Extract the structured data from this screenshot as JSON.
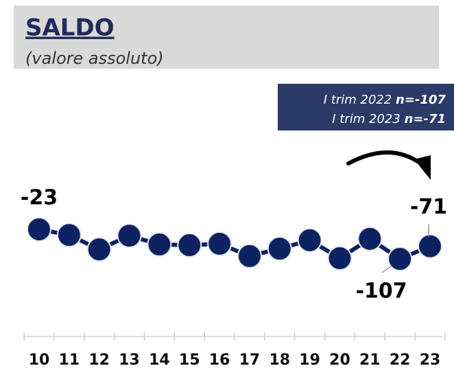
{
  "header": {
    "title": "SALDO",
    "subtitle": "(valore assoluto)"
  },
  "box": {
    "lines": [
      {
        "text": "I trim 2022",
        "bold": "n=-107"
      },
      {
        "text": "I trim 2023",
        "bold": "n=-71"
      }
    ]
  },
  "chart_data": {
    "type": "line",
    "categories": [
      "10",
      "11",
      "12",
      "13",
      "14",
      "15",
      "16",
      "17",
      "18",
      "19",
      "20",
      "21",
      "22",
      "23"
    ],
    "values": [
      -23,
      -39,
      -80,
      -41,
      -66,
      -68,
      -64,
      -99,
      -78,
      -54,
      -105,
      -50,
      -107,
      -71
    ],
    "value_labels": [
      "-23",
      null,
      null,
      null,
      null,
      null,
      null,
      null,
      null,
      null,
      null,
      null,
      "-107",
      "-71"
    ],
    "color": "#0d2260"
  }
}
